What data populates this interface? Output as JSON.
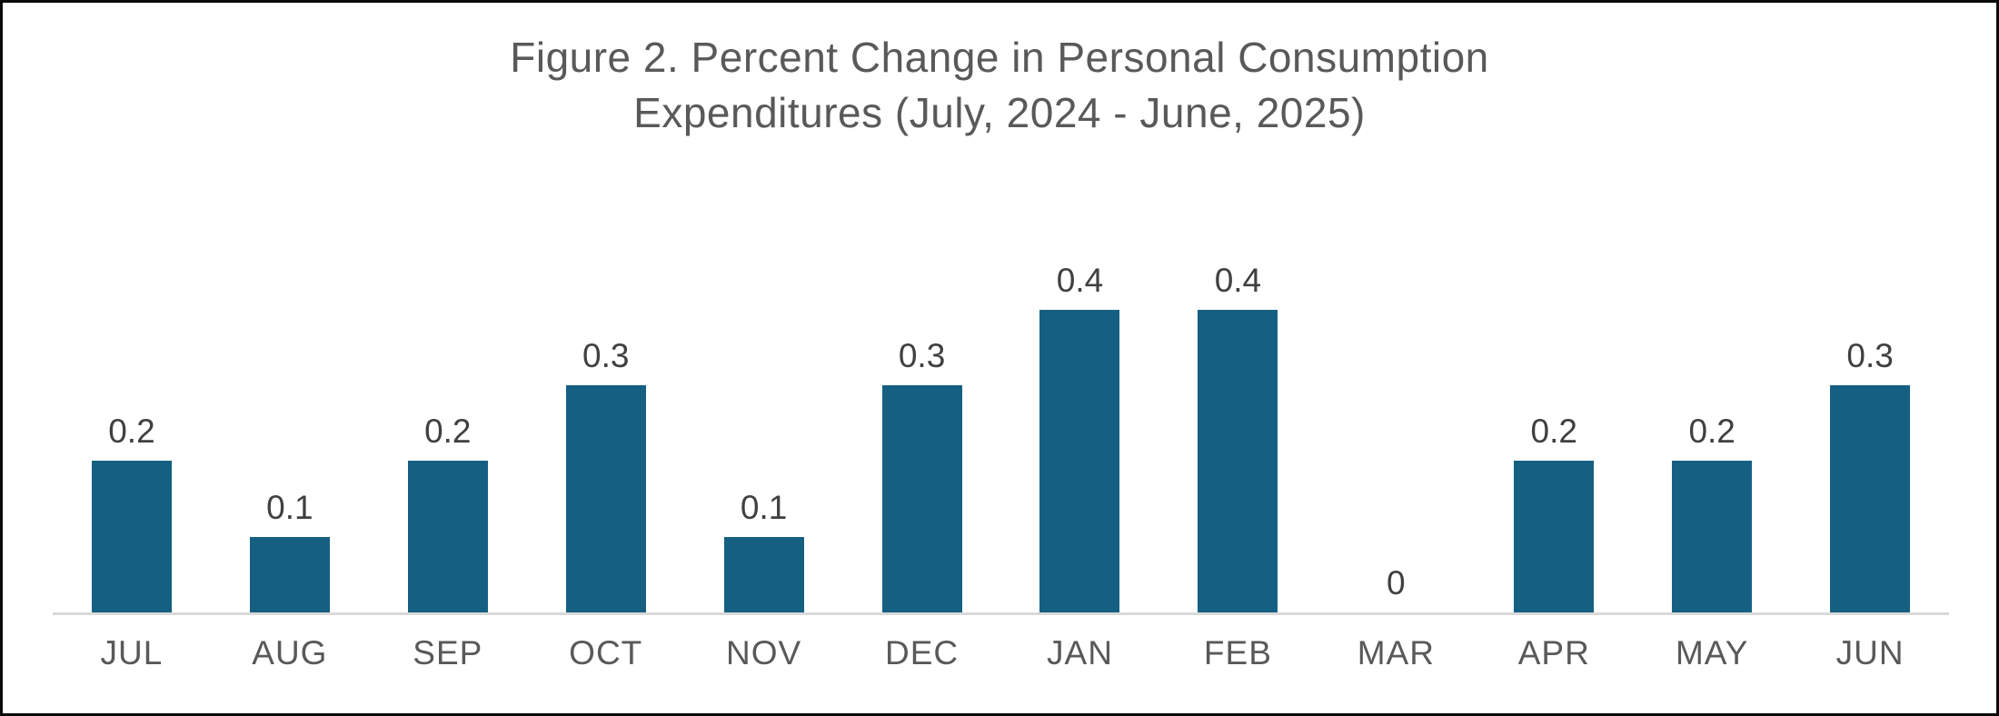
{
  "figure": {
    "title_line1": "Figure 2. Percent Change in Personal Consumption",
    "title_line2": "Expenditures (July, 2024 - June, 2025)"
  },
  "chart_data": {
    "type": "bar",
    "title": "Figure 2. Percent Change in Personal Consumption Expenditures (July, 2024 - June, 2025)",
    "categories": [
      "JUL",
      "AUG",
      "SEP",
      "OCT",
      "NOV",
      "DEC",
      "JAN",
      "FEB",
      "MAR",
      "APR",
      "MAY",
      "JUN"
    ],
    "values": [
      0.2,
      0.1,
      0.2,
      0.3,
      0.1,
      0.3,
      0.4,
      0.4,
      0,
      0.2,
      0.2,
      0.3
    ],
    "data_labels": [
      "0.2",
      "0.1",
      "0.2",
      "0.3",
      "0.1",
      "0.3",
      "0.4",
      "0.4",
      "0",
      "0.2",
      "0.2",
      "0.3"
    ],
    "xlabel": "",
    "ylabel": "",
    "ylim": [
      0,
      0.45
    ],
    "grid": false,
    "legend": false,
    "data_labels_shown": true,
    "colors": {
      "bar": "#156082",
      "title": "#595959",
      "value_label": "#404040",
      "tick_label": "#595959",
      "axis_line": "#D9D9D9",
      "frame_border": "#0a0a0a",
      "background": "#ffffff"
    }
  }
}
